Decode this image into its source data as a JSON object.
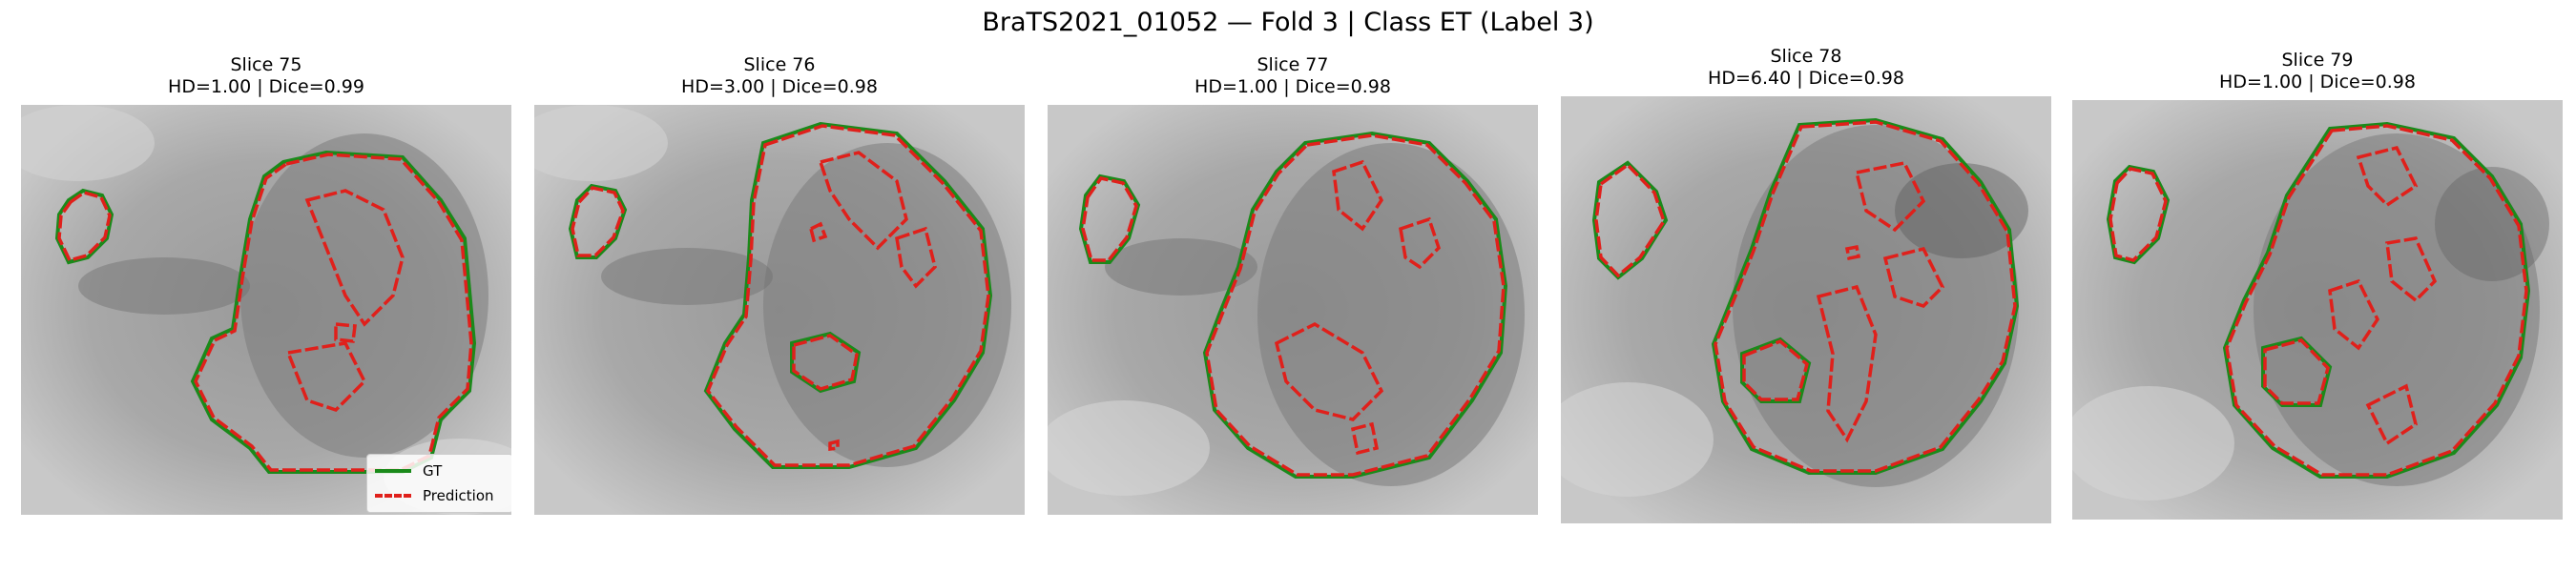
{
  "figure": {
    "title": "BraTS2021_01052 — Fold 3 | Class ET (Label 3)"
  },
  "panels": [
    {
      "slice": "Slice 75",
      "metrics": "HD=1.00 | Dice=0.99"
    },
    {
      "slice": "Slice 76",
      "metrics": "HD=3.00 | Dice=0.98"
    },
    {
      "slice": "Slice 77",
      "metrics": "HD=1.00 | Dice=0.98"
    },
    {
      "slice": "Slice 78",
      "metrics": "HD=6.40 | Dice=0.98"
    },
    {
      "slice": "Slice 79",
      "metrics": "HD=1.00 | Dice=0.98"
    }
  ],
  "legend": {
    "gt_label": "GT",
    "pred_label": "Prediction"
  },
  "colors": {
    "gt": "#1a8a1a",
    "prediction": "#e0201b"
  }
}
